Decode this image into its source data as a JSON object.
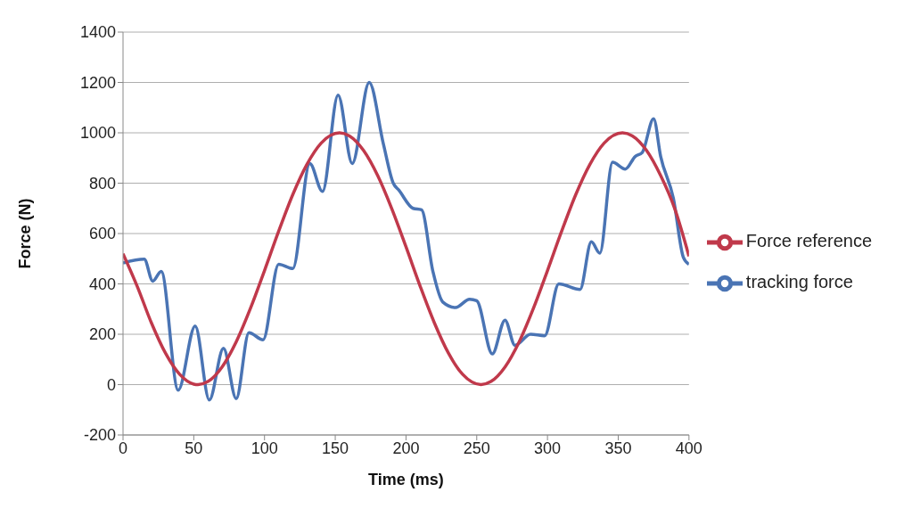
{
  "chart_data": {
    "type": "line",
    "xlabel": "Time (ms)",
    "ylabel": "Force (N)",
    "xlim": [
      0,
      400
    ],
    "xticks": [
      0,
      50,
      100,
      150,
      200,
      250,
      300,
      350,
      400
    ],
    "ylim": [
      -200,
      1400
    ],
    "yticks": [
      -200,
      0,
      200,
      400,
      600,
      800,
      1000,
      1200,
      1400
    ],
    "grid": "y",
    "legend": "right",
    "marker": "none",
    "line_style": "solid",
    "series": [
      {
        "name": "tracking force",
        "color": "#4a74b4",
        "x": [
          0,
          15,
          21,
          27,
          39,
          51,
          61,
          71,
          80,
          89,
          99,
          110,
          120,
          132,
          141,
          152,
          162,
          174,
          184,
          191,
          195,
          205,
          211,
          219,
          226,
          235,
          245,
          250,
          261,
          270,
          277,
          288,
          298,
          308,
          323,
          331,
          337,
          346,
          355,
          362,
          367,
          375,
          380,
          389,
          396,
          400
        ],
        "values": [
          483,
          498,
          411,
          450,
          -22,
          233,
          -61,
          144,
          -56,
          206,
          178,
          478,
          461,
          878,
          767,
          1150,
          878,
          1200,
          956,
          800,
          772,
          700,
          694,
          450,
          328,
          306,
          339,
          333,
          122,
          256,
          156,
          200,
          194,
          400,
          378,
          567,
          522,
          883,
          856,
          906,
          922,
          1056,
          906,
          739,
          506,
          478
        ]
      },
      {
        "name": "Force reference",
        "color": "#c0394b",
        "x": [
          0,
          10,
          20,
          30,
          40,
          50,
          53,
          60,
          70,
          80,
          90,
          100,
          110,
          120,
          130,
          140,
          153,
          160,
          170,
          180,
          190,
          200,
          210,
          220,
          230,
          240,
          253,
          260,
          270,
          280,
          290,
          300,
          310,
          320,
          330,
          340,
          353,
          360,
          370,
          380,
          390,
          400
        ],
        "values": [
          520,
          391,
          246,
          125,
          41,
          2,
          0,
          12,
          70,
          170,
          302,
          453,
          609,
          755,
          875,
          959,
          1000,
          988,
          930,
          830,
          698,
          547,
          391,
          246,
          125,
          41,
          0,
          12,
          70,
          170,
          302,
          453,
          609,
          755,
          875,
          959,
          1000,
          988,
          930,
          830,
          698,
          510
        ]
      }
    ]
  }
}
